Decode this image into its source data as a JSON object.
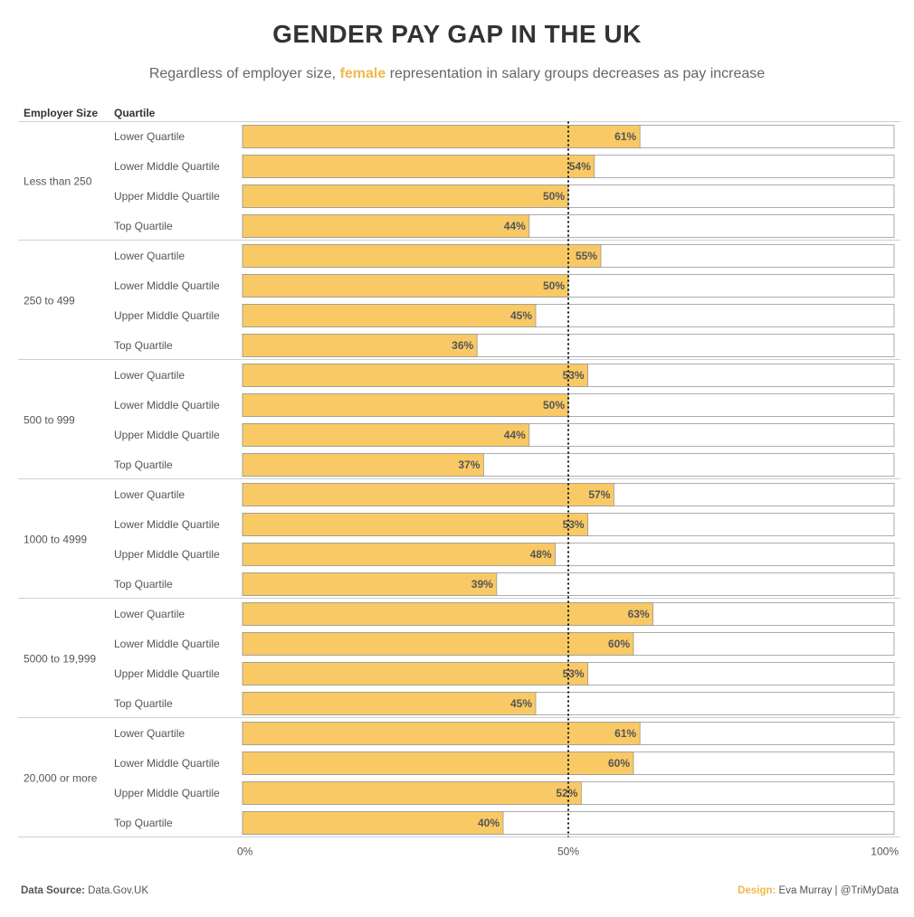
{
  "title": "GENDER PAY GAP IN THE UK",
  "subtitle": {
    "before": "Regardless of employer size, ",
    "highlight": "female",
    "after": " representation in salary groups decreases as pay increase"
  },
  "headers": {
    "employer_size": "Employer Size",
    "quartile": "Quartile"
  },
  "colors": {
    "female": "#F8C965",
    "bar_border": "#999999",
    "accent_text": "#F2B84B"
  },
  "chart_data": {
    "type": "bar",
    "orientation": "horizontal",
    "title": "GENDER PAY GAP IN THE UK",
    "xlabel": "",
    "ylabel": "",
    "xlim": [
      0,
      100
    ],
    "x_ticks": [
      "0%",
      "50%",
      "100%"
    ],
    "reference_line": {
      "value": 50,
      "style": "dotted"
    },
    "unit_suffix": "%",
    "groups": [
      {
        "employer_size": "Less than 250",
        "rows": [
          {
            "quartile": "Lower Quartile",
            "value": 61
          },
          {
            "quartile": "Lower Middle Quartile",
            "value": 54
          },
          {
            "quartile": "Upper Middle Quartile",
            "value": 50
          },
          {
            "quartile": "Top Quartile",
            "value": 44
          }
        ]
      },
      {
        "employer_size": "250 to 499",
        "rows": [
          {
            "quartile": "Lower Quartile",
            "value": 55
          },
          {
            "quartile": "Lower Middle Quartile",
            "value": 50
          },
          {
            "quartile": "Upper Middle Quartile",
            "value": 45
          },
          {
            "quartile": "Top Quartile",
            "value": 36
          }
        ]
      },
      {
        "employer_size": "500 to 999",
        "rows": [
          {
            "quartile": "Lower Quartile",
            "value": 53
          },
          {
            "quartile": "Lower Middle Quartile",
            "value": 50
          },
          {
            "quartile": "Upper Middle Quartile",
            "value": 44
          },
          {
            "quartile": "Top Quartile",
            "value": 37
          }
        ]
      },
      {
        "employer_size": "1000 to 4999",
        "rows": [
          {
            "quartile": "Lower Quartile",
            "value": 57
          },
          {
            "quartile": "Lower Middle Quartile",
            "value": 53
          },
          {
            "quartile": "Upper Middle Quartile",
            "value": 48
          },
          {
            "quartile": "Top Quartile",
            "value": 39
          }
        ]
      },
      {
        "employer_size": "5000 to 19,999",
        "rows": [
          {
            "quartile": "Lower Quartile",
            "value": 63
          },
          {
            "quartile": "Lower Middle Quartile",
            "value": 60
          },
          {
            "quartile": "Upper Middle Quartile",
            "value": 53
          },
          {
            "quartile": "Top Quartile",
            "value": 45
          }
        ]
      },
      {
        "employer_size": "20,000 or more",
        "rows": [
          {
            "quartile": "Lower Quartile",
            "value": 61
          },
          {
            "quartile": "Lower Middle Quartile",
            "value": 60
          },
          {
            "quartile": "Upper Middle Quartile",
            "value": 52
          },
          {
            "quartile": "Top Quartile",
            "value": 40
          }
        ]
      }
    ]
  },
  "footer": {
    "source_label": "Data Source:",
    "source_value": "Data.Gov.UK",
    "design_label": "Design:",
    "design_value": "Eva Murray | @TriMyData"
  }
}
